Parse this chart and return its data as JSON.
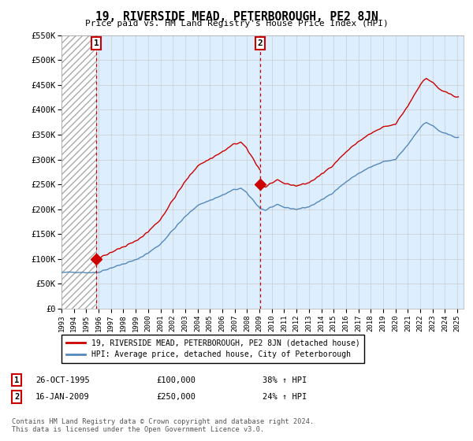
{
  "title": "19, RIVERSIDE MEAD, PETERBOROUGH, PE2 8JN",
  "subtitle": "Price paid vs. HM Land Registry's House Price Index (HPI)",
  "ylim": [
    0,
    550000
  ],
  "yticks": [
    0,
    50000,
    100000,
    150000,
    200000,
    250000,
    300000,
    350000,
    400000,
    450000,
    500000,
    550000
  ],
  "xlim_start": 1993.0,
  "xlim_end": 2025.5,
  "sale1_x": 1995.82,
  "sale1_y": 100000,
  "sale1_label": "1",
  "sale1_date": "26-OCT-1995",
  "sale1_price": "£100,000",
  "sale1_hpi": "38% ↑ HPI",
  "sale2_x": 2009.04,
  "sale2_y": 250000,
  "sale2_label": "2",
  "sale2_date": "16-JAN-2009",
  "sale2_price": "£250,000",
  "sale2_hpi": "24% ↑ HPI",
  "hpi_line_color": "#5588bb",
  "price_line_color": "#cc0000",
  "marker_color": "#cc0000",
  "dashed_line_color": "#cc0000",
  "plot_bg_color": "#ddeeff",
  "hatch_color": "#aaaaaa",
  "legend_label_red": "19, RIVERSIDE MEAD, PETERBOROUGH, PE2 8JN (detached house)",
  "legend_label_blue": "HPI: Average price, detached house, City of Peterborough",
  "footnote": "Contains HM Land Registry data © Crown copyright and database right 2024.\nThis data is licensed under the Open Government Licence v3.0.",
  "background_color": "#ffffff",
  "grid_color": "#cccccc",
  "label_box_color": "#cc0000"
}
